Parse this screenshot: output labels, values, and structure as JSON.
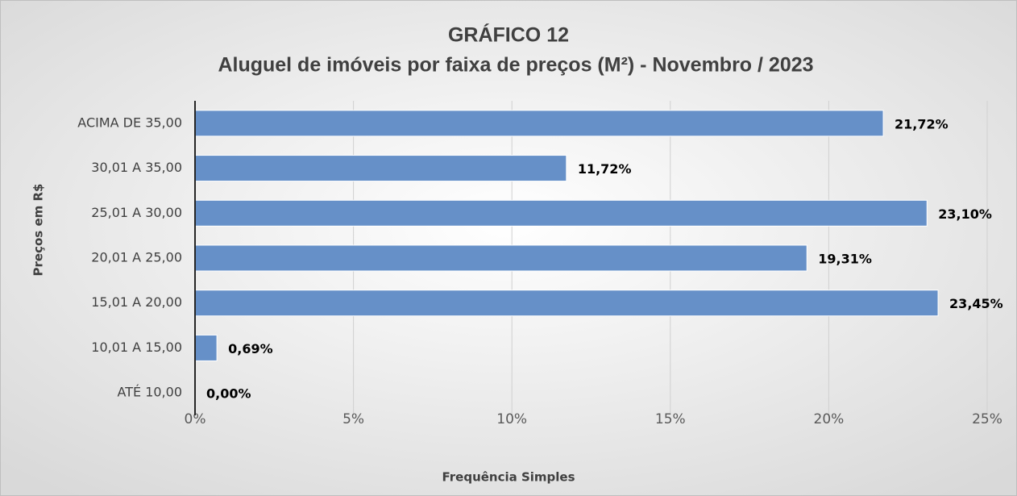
{
  "chart_data": {
    "type": "bar",
    "orientation": "horizontal",
    "title": "GRÁFICO 12",
    "subtitle": "Aluguel de imóveis por faixa de preços (M²) -  Novembro /  2023",
    "x_label": "Frequência Simples",
    "y_label": "Preços em R$",
    "categories": [
      "ACIMA DE 35,00",
      "30,01 A 35,00",
      "25,01 A 30,00",
      "20,01 A 25,00",
      "15,01 A 20,00",
      "10,01 A 15,00",
      "ATÉ 10,00"
    ],
    "values": [
      21.72,
      11.72,
      23.1,
      19.31,
      23.45,
      0.69,
      0.0
    ],
    "value_labels": [
      "21,72%",
      "11,72%",
      "23,10%",
      "19,31%",
      "23,45%",
      "0,69%",
      "0,00%"
    ],
    "color": "#6690c8",
    "xlim": [
      0,
      25
    ],
    "xticks": [
      {
        "value": 0,
        "label": "0%"
      },
      {
        "value": 5,
        "label": "5%"
      },
      {
        "value": 10,
        "label": "10%"
      },
      {
        "value": 15,
        "label": "15%"
      },
      {
        "value": 20,
        "label": "20%"
      },
      {
        "value": 25,
        "label": "25%"
      }
    ],
    "grid": true
  }
}
